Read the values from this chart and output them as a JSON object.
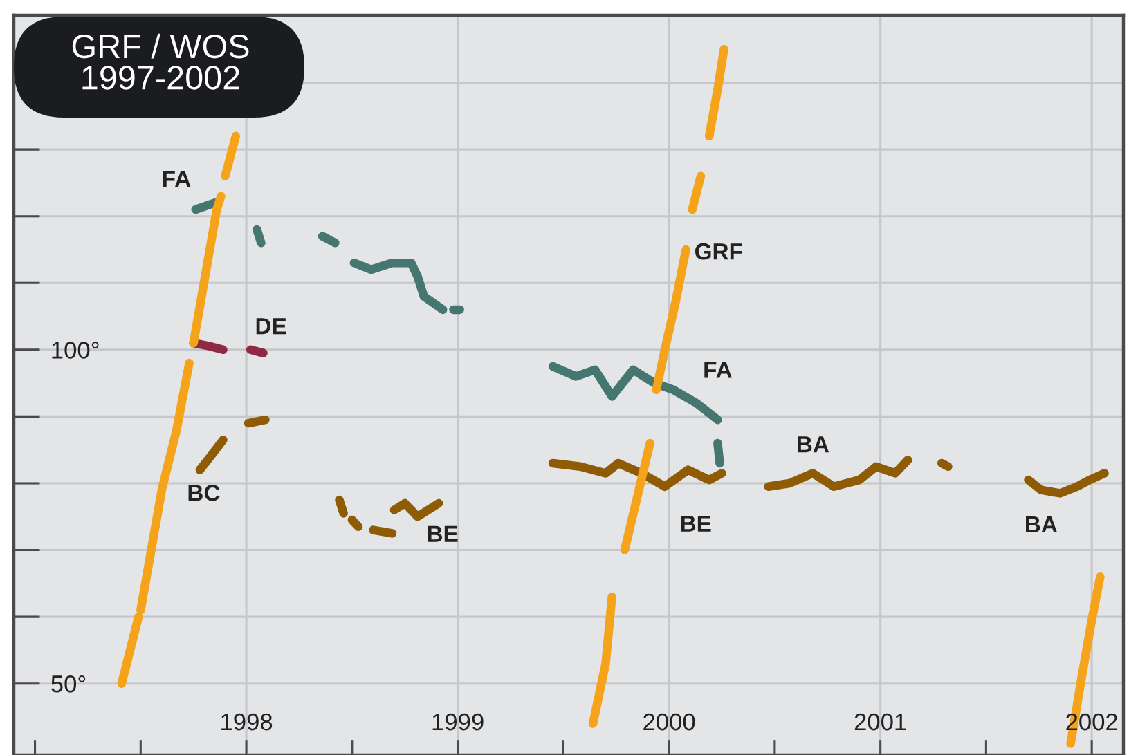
{
  "chart_data": {
    "type": "line",
    "title": "GRF / WOS\n1997-2002",
    "xlim": [
      1996.9,
      2002.15
    ],
    "ylim": [
      39.3,
      150.1
    ],
    "xticks": [
      {
        "value": 1997,
        "label": null
      },
      {
        "value": 1997.5,
        "label": null
      },
      1998,
      {
        "value": 1998.5,
        "label": null
      },
      1999,
      {
        "value": 1999.5,
        "label": null
      },
      2000,
      {
        "value": 2000.5,
        "label": null
      },
      2001,
      {
        "value": 2001.5,
        "label": null
      },
      2002
    ],
    "yticks": [
      {
        "value": 50,
        "label": "50°"
      },
      {
        "value": 60,
        "label": null
      },
      {
        "value": 70,
        "label": null
      },
      {
        "value": 80,
        "label": null
      },
      {
        "value": 90,
        "label": null
      },
      {
        "value": 100,
        "label": "100°"
      },
      {
        "value": 110,
        "label": null
      },
      {
        "value": 120,
        "label": null
      },
      {
        "value": 130,
        "label": null
      },
      {
        "value": 140,
        "label": null
      }
    ],
    "grid": true,
    "series": [
      {
        "name": "FA",
        "color": "#45766f",
        "x": [
          1997.76,
          1997.85,
          null,
          1998.05,
          1998.07,
          null,
          1998.36,
          1998.42,
          null,
          1998.51,
          1998.59,
          1998.69,
          1998.78,
          1998.81,
          1998.84,
          1998.93,
          null,
          1998.98,
          1999.01
        ],
        "values": [
          121,
          122,
          null,
          118,
          116,
          null,
          117,
          116,
          null,
          113,
          112,
          113,
          113,
          111,
          108,
          106,
          null,
          106,
          106
        ]
      },
      {
        "name": "FA",
        "color": "#45766f",
        "x": [
          1999.45,
          1999.56,
          1999.65,
          1999.73,
          1999.83,
          1999.93,
          2000.02,
          2000.13,
          2000.23,
          null,
          2000.23,
          2000.24
        ],
        "values": [
          97.5,
          96,
          97,
          93,
          97,
          95,
          94,
          92,
          89.5,
          null,
          86,
          83
        ]
      },
      {
        "name": "DE",
        "color": "#8e2a44",
        "x": [
          1997.75,
          1997.83,
          1997.89,
          null,
          1998.02,
          1998.08
        ],
        "values": [
          101,
          100.5,
          100,
          null,
          100,
          99.5
        ]
      },
      {
        "name": "BC",
        "color": "#8f5c05",
        "x": [
          1997.78,
          1997.83,
          1997.89,
          null,
          1998.01,
          1998.09
        ],
        "values": [
          82,
          84,
          86.5,
          null,
          89,
          89.5
        ]
      },
      {
        "name": "BE",
        "color": "#8f5c05",
        "x": [
          1998.44,
          1998.46,
          null,
          1998.5,
          1998.53,
          null,
          1998.6,
          1998.69,
          null,
          1998.7,
          1998.75,
          1998.81,
          1998.91
        ],
        "values": [
          77.5,
          75.5,
          null,
          74.5,
          73.5,
          null,
          73,
          72.5,
          null,
          76,
          77,
          75,
          77
        ]
      },
      {
        "name": "BE",
        "color": "#8f5c05",
        "x": [
          1999.45,
          1999.58,
          1999.7,
          1999.76,
          1999.87,
          1999.98,
          2000.09,
          2000.19,
          2000.25
        ],
        "values": [
          83,
          82.5,
          81.5,
          83,
          81.5,
          79.5,
          82,
          80.5,
          81.5
        ]
      },
      {
        "name": "BA",
        "color": "#8f5c05",
        "x": [
          2000.47,
          2000.57,
          2000.68,
          2000.78,
          2000.9,
          2000.98,
          2001.07,
          2001.13,
          null,
          2001.29,
          2001.32
        ],
        "values": [
          79.5,
          80,
          81.5,
          79.5,
          80.5,
          82.5,
          81.5,
          83.5,
          null,
          83,
          82.5
        ]
      },
      {
        "name": "BA",
        "color": "#8f5c05",
        "x": [
          2001.7,
          2001.76,
          2001.85,
          2001.93,
          2001.99,
          2002.06
        ],
        "values": [
          80.5,
          79,
          78.5,
          79.5,
          80.5,
          81.5
        ]
      },
      {
        "name": "GRF",
        "color": "#f5a31a",
        "x": [
          1997.41,
          1997.49,
          null,
          1997.5,
          1997.6,
          1997.67,
          1997.73,
          null,
          1997.75,
          1997.86,
          1997.88,
          null,
          1997.9,
          1997.95,
          null,
          1999.64,
          1999.7,
          1999.73,
          null,
          1999.79,
          1999.85,
          1999.91,
          null,
          1999.94,
          1999.98,
          2000.03,
          2000.08,
          null,
          2000.11,
          2000.15,
          null,
          2000.19,
          2000.23,
          2000.26,
          null,
          2001.9,
          2001.95,
          2002.0,
          2002.04
        ],
        "values": [
          50,
          60,
          null,
          61,
          79,
          88,
          98,
          null,
          101,
          121,
          123,
          null,
          126,
          132,
          null,
          44,
          53,
          63,
          null,
          70,
          78,
          86,
          null,
          94,
          100,
          107,
          115,
          null,
          121,
          126,
          null,
          132,
          139,
          145,
          null,
          41,
          50.5,
          59.5,
          66
        ]
      }
    ]
  }
}
